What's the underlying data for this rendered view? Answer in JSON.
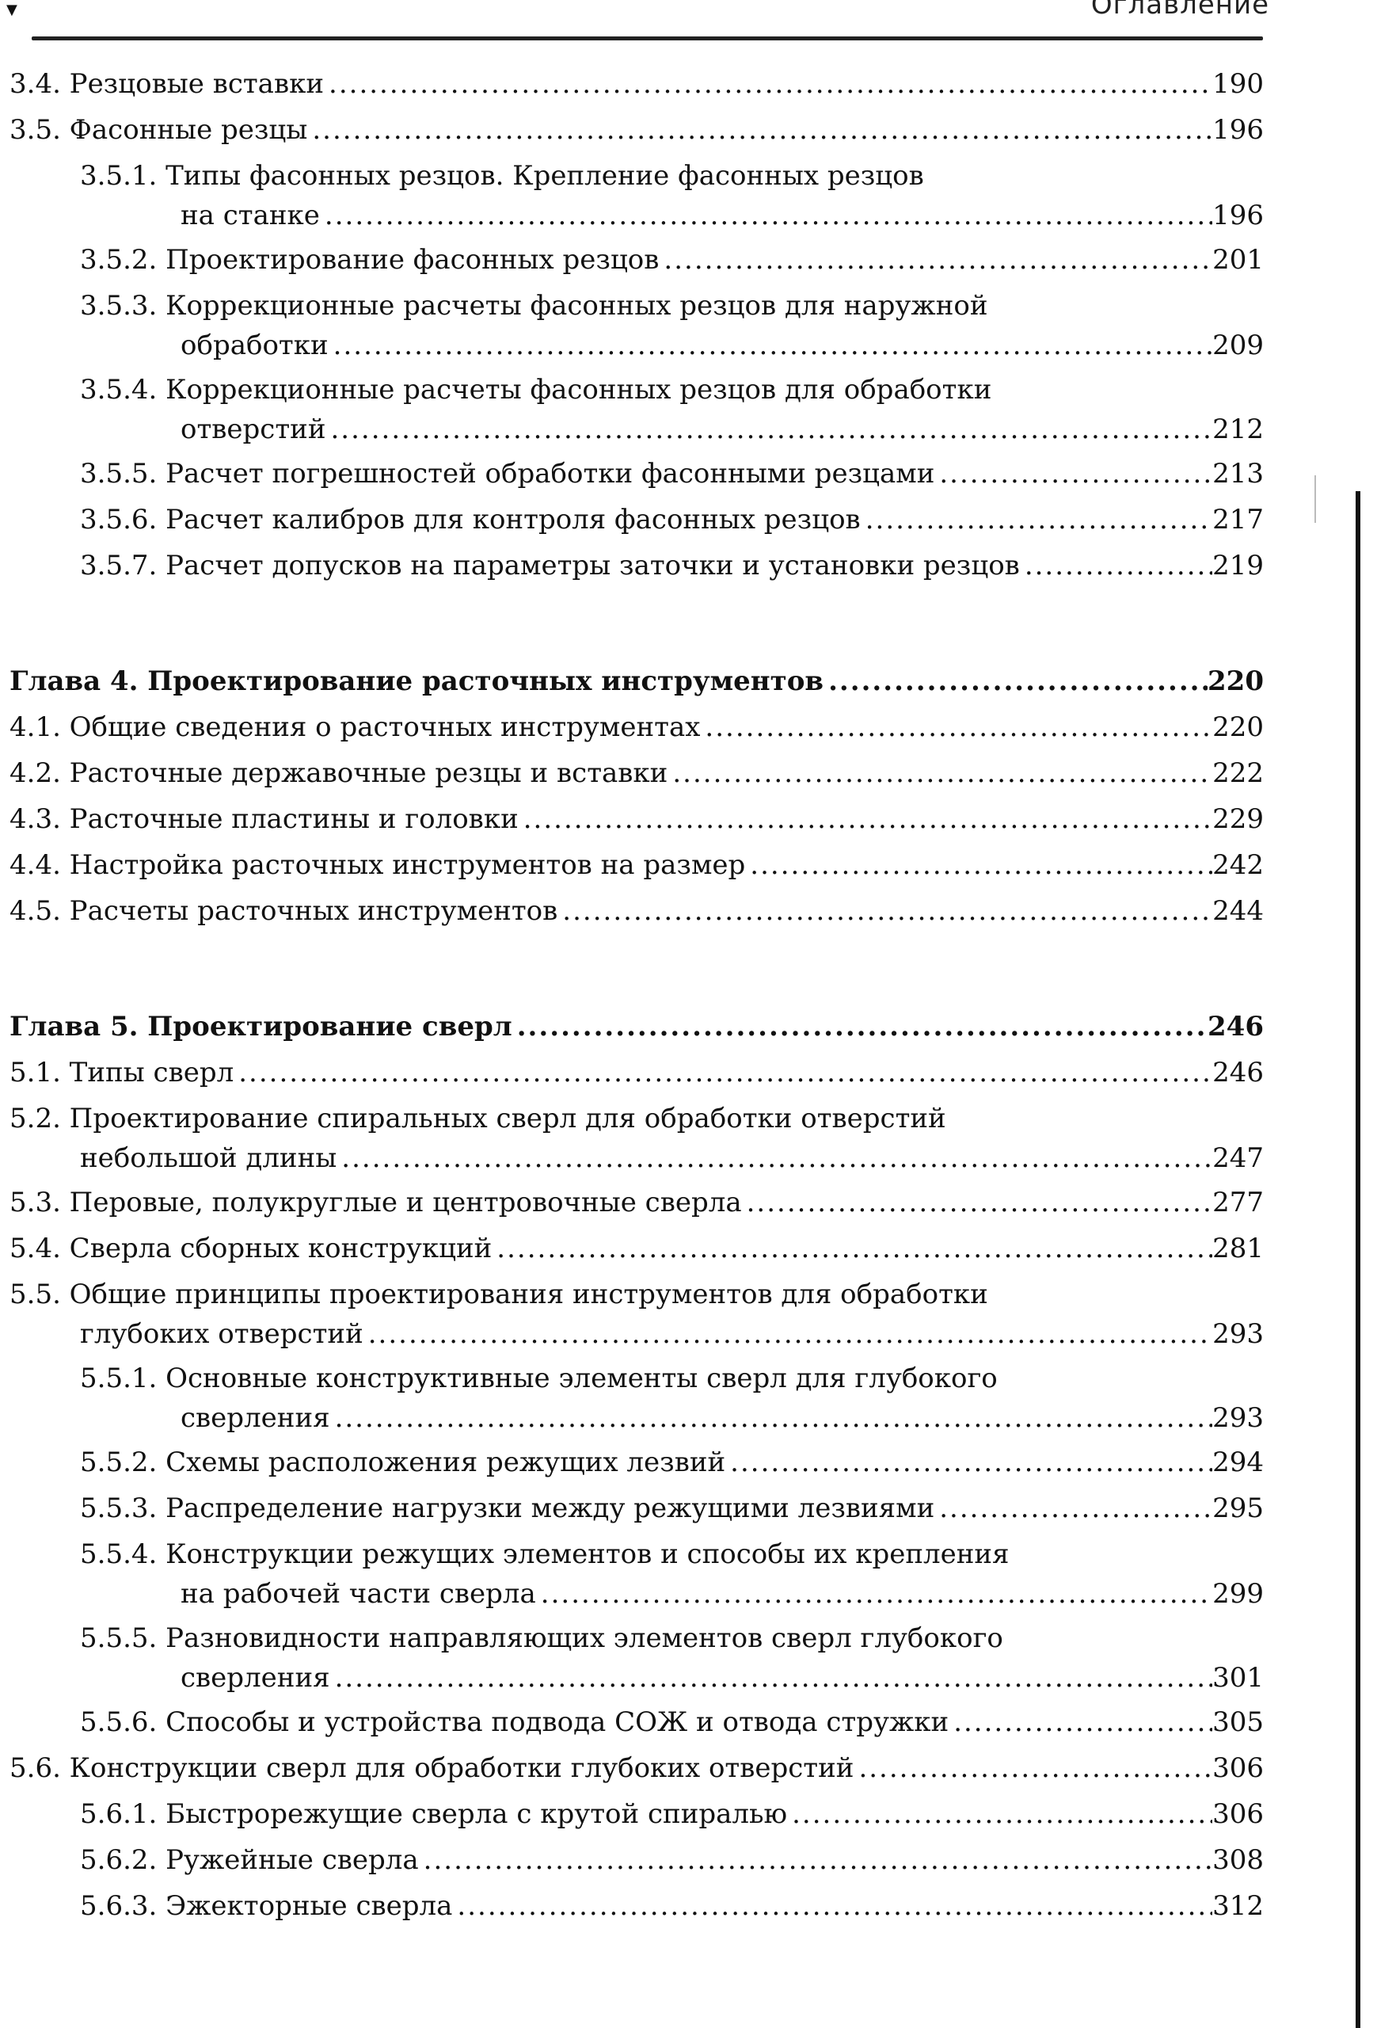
{
  "header": {
    "running_title": "Оглавление",
    "mark": "▼"
  },
  "groups": [
    {
      "entries": [
        {
          "level": 1,
          "lines": [
            "3.4. Резцовые вставки"
          ],
          "page": "190"
        },
        {
          "level": 1,
          "lines": [
            "3.5. Фасонные резцы"
          ],
          "page": "196"
        },
        {
          "level": 2,
          "lines": [
            "3.5.1. Типы фасонных резцов. Крепление фасонных резцов",
            "на станке"
          ],
          "page": "196"
        },
        {
          "level": 2,
          "lines": [
            "3.5.2. Проектирование фасонных резцов"
          ],
          "page": "201"
        },
        {
          "level": 2,
          "lines": [
            "3.5.3. Коррекционные расчеты фасонных резцов для наружной",
            "обработки"
          ],
          "page": "209"
        },
        {
          "level": 2,
          "lines": [
            "3.5.4. Коррекционные расчеты фасонных резцов для обработки",
            "отверстий"
          ],
          "page": "212"
        },
        {
          "level": 2,
          "lines": [
            "3.5.5. Расчет погрешностей обработки фасонными резцами"
          ],
          "page": "213"
        },
        {
          "level": 2,
          "lines": [
            "3.5.6. Расчет калибров для контроля фасонных резцов"
          ],
          "page": "217"
        },
        {
          "level": 2,
          "lines": [
            "3.5.7. Расчет допусков на параметры заточки и установки резцов"
          ],
          "page": "219"
        }
      ]
    },
    {
      "entries": [
        {
          "level": 0,
          "lines": [
            "Глава 4. Проектирование расточных инструментов"
          ],
          "page": "220"
        },
        {
          "level": 1,
          "lines": [
            "4.1. Общие сведения о расточных инструментах"
          ],
          "page": "220"
        },
        {
          "level": 1,
          "lines": [
            "4.2. Расточные державочные резцы и вставки"
          ],
          "page": "222"
        },
        {
          "level": 1,
          "lines": [
            "4.3. Расточные пластины и головки"
          ],
          "page": "229"
        },
        {
          "level": 1,
          "lines": [
            "4.4. Настройка расточных инструментов на размер"
          ],
          "page": "242"
        },
        {
          "level": 1,
          "lines": [
            "4.5. Расчеты расточных инструментов"
          ],
          "page": "244"
        }
      ]
    },
    {
      "entries": [
        {
          "level": 0,
          "lines": [
            "Глава 5. Проектирование сверл"
          ],
          "page": "246"
        },
        {
          "level": 1,
          "lines": [
            "5.1. Типы сверл"
          ],
          "page": "246"
        },
        {
          "level": 1,
          "lines": [
            "5.2. Проектирование спиральных сверл для обработки отверстий",
            "небольшой длины"
          ],
          "page": "247"
        },
        {
          "level": 1,
          "lines": [
            "5.3. Перовые, полукруглые и центровочные сверла"
          ],
          "page": "277"
        },
        {
          "level": 1,
          "lines": [
            "5.4. Сверла сборных конструкций"
          ],
          "page": "281"
        },
        {
          "level": 1,
          "lines": [
            "5.5. Общие принципы проектирования инструментов для обработки",
            "глубоких отверстий"
          ],
          "page": "293"
        },
        {
          "level": 2,
          "lines": [
            "5.5.1. Основные конструктивные элементы сверл для глубокого",
            "сверления"
          ],
          "page": "293"
        },
        {
          "level": 2,
          "lines": [
            "5.5.2. Схемы расположения режущих лезвий"
          ],
          "page": "294"
        },
        {
          "level": 2,
          "lines": [
            "5.5.3. Распределение нагрузки между режущими лезвиями"
          ],
          "page": "295"
        },
        {
          "level": 2,
          "lines": [
            "5.5.4. Конструкции режущих элементов и способы их крепления",
            "на рабочей части сверла"
          ],
          "page": "299"
        },
        {
          "level": 2,
          "lines": [
            "5.5.5. Разновидности направляющих элементов сверл глубокого",
            "сверления"
          ],
          "page": "301"
        },
        {
          "level": 2,
          "lines": [
            "5.5.6. Способы и устройства подвода СОЖ и отвода стружки"
          ],
          "page": "305"
        },
        {
          "level": 1,
          "lines": [
            "5.6. Конструкции сверл для обработки глубоких отверстий"
          ],
          "page": "306"
        },
        {
          "level": 2,
          "lines": [
            "5.6.1. Быстрорежущие сверла с крутой спиралью"
          ],
          "page": "306"
        },
        {
          "level": 2,
          "lines": [
            "5.6.2. Ружейные сверла"
          ],
          "page": "308"
        },
        {
          "level": 2,
          "lines": [
            "5.6.3. Эжекторные сверла"
          ],
          "page": "312"
        }
      ]
    }
  ]
}
